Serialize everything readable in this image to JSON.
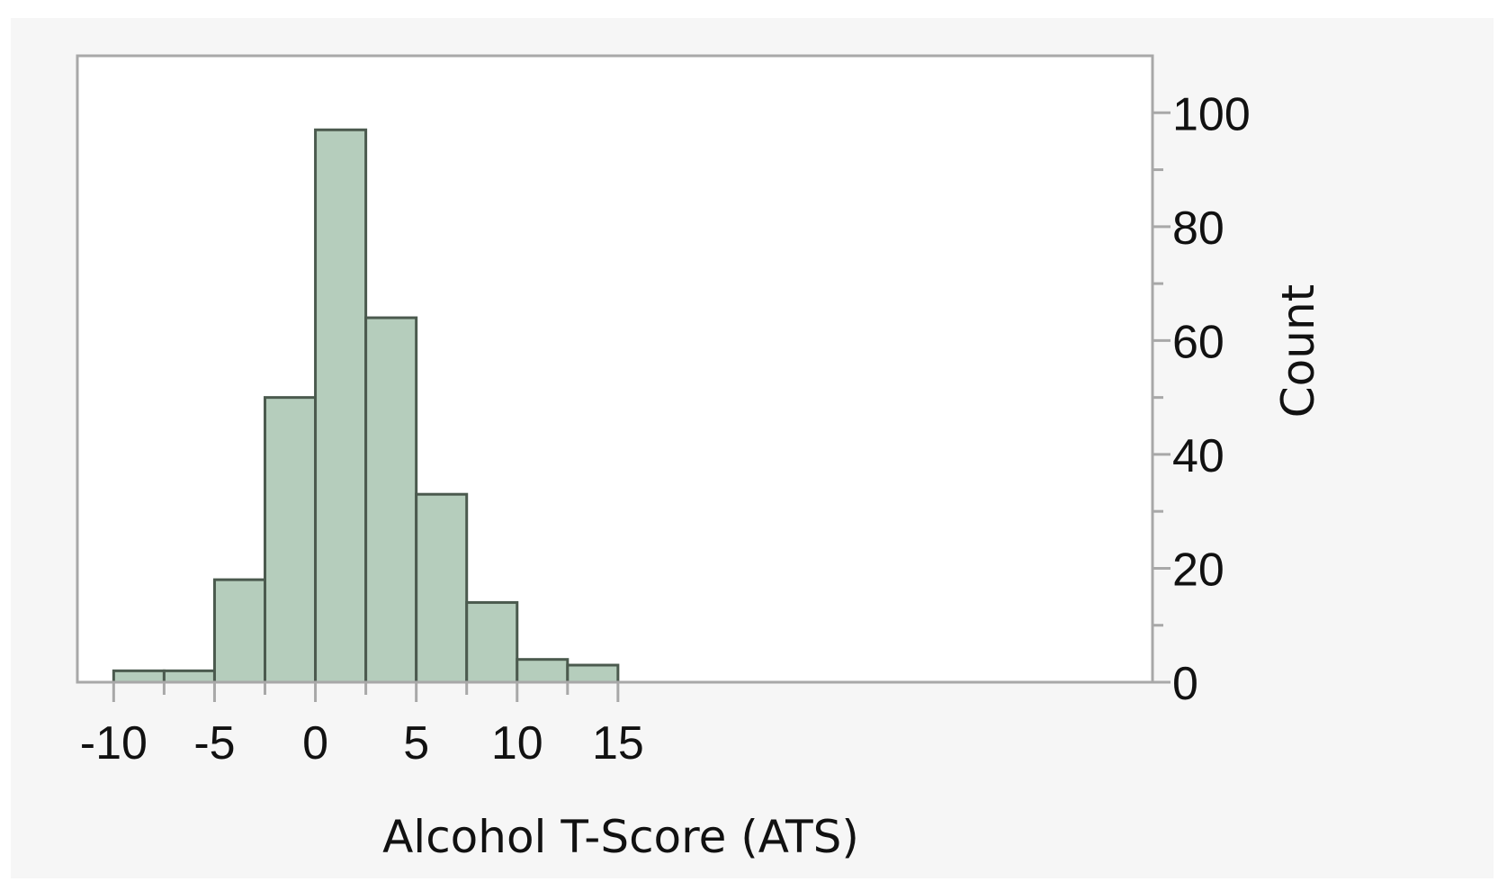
{
  "chart_data": {
    "type": "bar",
    "subtype": "histogram",
    "bin_edges": [
      -10,
      -7.5,
      -5,
      -2.5,
      0,
      2.5,
      5,
      7.5,
      10,
      12.5,
      15
    ],
    "values": [
      2,
      2,
      18,
      50,
      97,
      64,
      33,
      14,
      4,
      3
    ],
    "xlabel": "Alcohol T-Score (ATS)",
    "ylabel": "Count",
    "xlim": [
      -11.8,
      41.5
    ],
    "ylim": [
      0,
      110
    ],
    "x_ticks": [
      "-10",
      "-5",
      "0",
      "5",
      "10",
      "15"
    ],
    "y_ticks": [
      "0",
      "20",
      "40",
      "60",
      "80",
      "100"
    ],
    "y_axis_position": "right",
    "grid": false,
    "colors": {
      "bar_fill": "#b5cdbc",
      "bar_stroke": "#4b5a4e",
      "frame": "#a8a8a8",
      "background": "#f6f6f6"
    }
  }
}
